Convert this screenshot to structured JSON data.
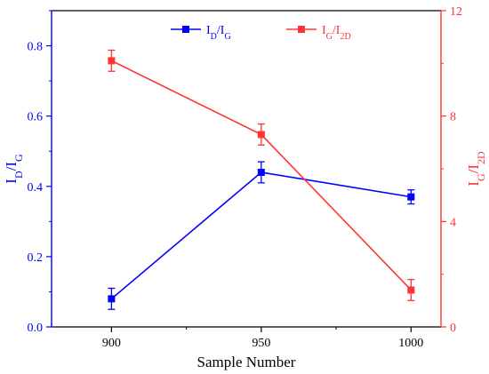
{
  "chart_data": {
    "type": "line",
    "x": [
      900,
      950,
      1000
    ],
    "xlabel": "Sample Number",
    "xlim": [
      880,
      1010
    ],
    "xticks": [
      900,
      950,
      1000
    ],
    "grid": false,
    "legend_position": "top",
    "series": [
      {
        "name_main": "I",
        "name_sub1": "D",
        "name_sep": "/",
        "name_main2": "I",
        "name_sub2": "G",
        "axis": "left",
        "color": "#0000ff",
        "values": [
          0.08,
          0.44,
          0.37
        ],
        "errors": [
          0.03,
          0.03,
          0.02
        ]
      },
      {
        "name_main": "I",
        "name_sub1": "G",
        "name_sep": "/",
        "name_main2": "I",
        "name_sub2": "2D",
        "axis": "right",
        "color": "#ff3333",
        "values": [
          10.1,
          7.3,
          1.4
        ],
        "errors": [
          0.4,
          0.4,
          0.4
        ]
      }
    ],
    "y_left": {
      "label_main": "I",
      "label_sub1": "D",
      "label_sep": "/",
      "label_main2": "I",
      "label_sub2": "G",
      "ylim": [
        0,
        0.9
      ],
      "ticks": [
        0.0,
        0.2,
        0.4,
        0.6,
        0.8
      ],
      "tick_labels": [
        "0.0",
        "0.2",
        "0.4",
        "0.6",
        "0.8"
      ],
      "color": "#0000ff"
    },
    "y_right": {
      "label_main": "I",
      "label_sub1": "G",
      "label_sep": "/",
      "label_main2": "I",
      "label_sub2": "2D",
      "ylim": [
        0,
        12
      ],
      "ticks": [
        0,
        4,
        8,
        12
      ],
      "tick_labels": [
        "0",
        "4",
        "8",
        "12"
      ],
      "color": "#ff3333"
    }
  }
}
